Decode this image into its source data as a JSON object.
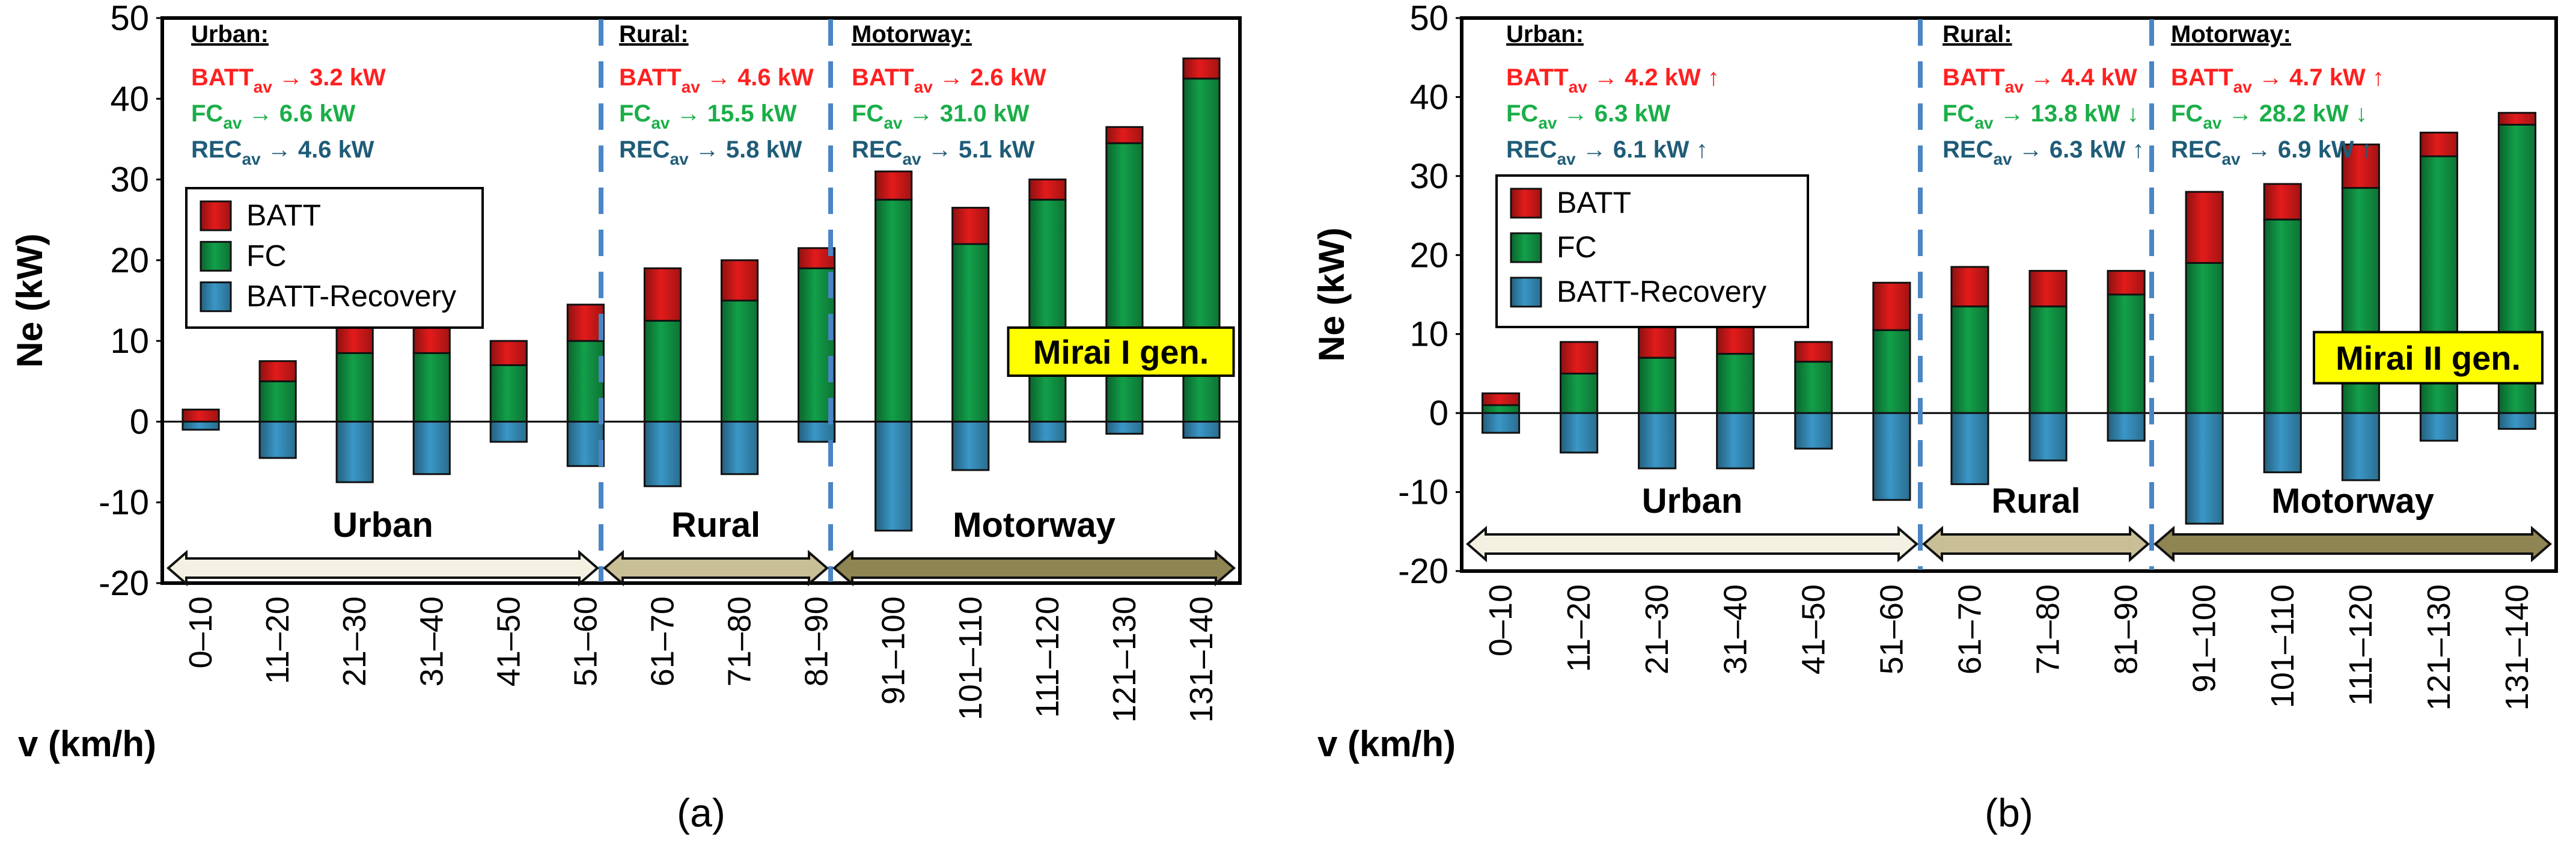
{
  "colors": {
    "batt": "#e31b1b",
    "batt_dark": "#8c0e0e",
    "fc": "#12a049",
    "fc_dark": "#075a26",
    "rec": "#3a97c7",
    "rec_dark": "#17567a",
    "batt_text": "#ff2020",
    "fc_text": "#1aae48",
    "rec_text": "#1f5c78",
    "divider": "#4a86c5",
    "urban_fill": "#f5f1e2",
    "rural_fill": "#c9bf96",
    "motorway_fill": "#8f8552",
    "label_box": "#ffff00"
  },
  "shared": {
    "ylabel": "Ne (kW)",
    "xlabel": "v (km/h)",
    "ytick_labels": [
      "50",
      "40",
      "30",
      "20",
      "10",
      "0",
      "-10",
      "-20"
    ],
    "categories": [
      "0–10",
      "11–20",
      "21–30",
      "31–40",
      "41–50",
      "51–60",
      "61–70",
      "71–80",
      "81–90",
      "91–100",
      "101–110",
      "111–120",
      "121–130",
      "131–140"
    ],
    "legend": [
      "BATT",
      "FC",
      "BATT-Recovery"
    ],
    "arrow_labels": [
      "Urban",
      "Rural",
      "Motorway"
    ]
  },
  "chart_data": [
    {
      "type": "bar",
      "panel_label": "(a)",
      "badge": "Mirai I gen.",
      "categories": [
        "0–10",
        "11–20",
        "21–30",
        "31–40",
        "41–50",
        "51–60",
        "61–70",
        "71–80",
        "81–90",
        "91–100",
        "101–110",
        "111–120",
        "121–130",
        "131–140"
      ],
      "ylim": [
        -20,
        50
      ],
      "series": [
        {
          "name": "FC",
          "values": [
            0,
            5,
            8.5,
            8.5,
            7,
            10,
            12.5,
            15,
            19,
            27.5,
            22,
            27.5,
            34.5,
            42.5
          ]
        },
        {
          "name": "BATT",
          "values": [
            1.5,
            2.5,
            4.5,
            4.5,
            3,
            4.5,
            6.5,
            5,
            2.5,
            3.5,
            4.5,
            2.5,
            2,
            2.5
          ]
        },
        {
          "name": "BATT-Recovery",
          "values": [
            -1,
            -4.5,
            -7.5,
            -6.5,
            -2.5,
            -5.5,
            -8,
            -6.5,
            -2.5,
            -13.5,
            -6,
            -2.5,
            -1.5,
            -2
          ]
        }
      ],
      "sections": [
        {
          "title": "Urban:",
          "batt": "3.2 kW",
          "fc": "6.6 kW",
          "rec": "4.6 kW",
          "batt_trend": "",
          "fc_trend": "",
          "rec_trend": ""
        },
        {
          "title": "Rural:",
          "batt": "4.6 kW",
          "fc": "15.5 kW",
          "rec": "5.8 kW",
          "batt_trend": "",
          "fc_trend": "",
          "rec_trend": ""
        },
        {
          "title": "Motorway:",
          "batt": "2.6 kW",
          "fc": "31.0 kW",
          "rec": "5.1 kW",
          "batt_trend": "",
          "fc_trend": "",
          "rec_trend": ""
        }
      ]
    },
    {
      "type": "bar",
      "panel_label": "(b)",
      "badge": "Mirai II gen.",
      "categories": [
        "0–10",
        "11–20",
        "21–30",
        "31–40",
        "41–50",
        "51–60",
        "61–70",
        "71–80",
        "81–90",
        "91–100",
        "101–110",
        "111–120",
        "121–130",
        "131–140"
      ],
      "ylim": [
        -20,
        50
      ],
      "series": [
        {
          "name": "FC",
          "values": [
            1,
            5,
            7,
            7.5,
            6.5,
            10.5,
            13.5,
            13.5,
            15,
            19,
            24.5,
            28.5,
            32.5,
            36.5
          ]
        },
        {
          "name": "BATT",
          "values": [
            1.5,
            4,
            5.5,
            5,
            2.5,
            6,
            5,
            4.5,
            3,
            9,
            4.5,
            5.5,
            3,
            1.5
          ]
        },
        {
          "name": "BATT-Recovery",
          "values": [
            -2.5,
            -5,
            -7,
            -7,
            -4.5,
            -11,
            -9,
            -6,
            -3.5,
            -14,
            -7.5,
            -8.5,
            -3.5,
            -2
          ]
        }
      ],
      "sections": [
        {
          "title": "Urban:",
          "batt": "4.2 kW",
          "fc": "6.3 kW",
          "rec": "6.1 kW",
          "batt_trend": "↑",
          "fc_trend": "",
          "rec_trend": "↑"
        },
        {
          "title": "Rural:",
          "batt": "4.4 kW",
          "fc": "13.8 kW",
          "rec": "6.3 kW",
          "batt_trend": "",
          "fc_trend": "↓",
          "rec_trend": "↑"
        },
        {
          "title": "Motorway:",
          "batt": "4.7 kW",
          "fc": "28.2 kW",
          "rec": "6.9 kW",
          "batt_trend": "↑",
          "fc_trend": "↓",
          "rec_trend": "↑"
        }
      ]
    }
  ]
}
